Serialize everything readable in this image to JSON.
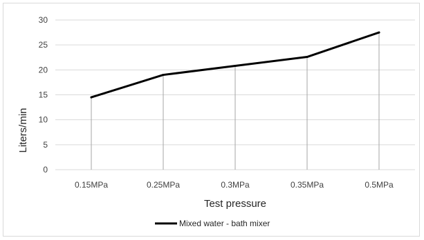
{
  "chart_data": {
    "type": "line",
    "categories": [
      "0.15MPa",
      "0.25MPa",
      "0.3MPa",
      "0.35MPa",
      "0.5MPa"
    ],
    "series": [
      {
        "name": "Mixed water - bath mixer",
        "values": [
          14.5,
          19,
          20.8,
          22.6,
          27.5
        ],
        "color": "#000000"
      }
    ],
    "xlabel": "Test pressure",
    "ylabel": "Liters/min",
    "ylim": [
      0,
      30
    ],
    "yticks": [
      "0",
      "5",
      "10",
      "15",
      "20",
      "25",
      "30"
    ],
    "grid": true,
    "drop_lines": true,
    "legend_position": "bottom"
  }
}
